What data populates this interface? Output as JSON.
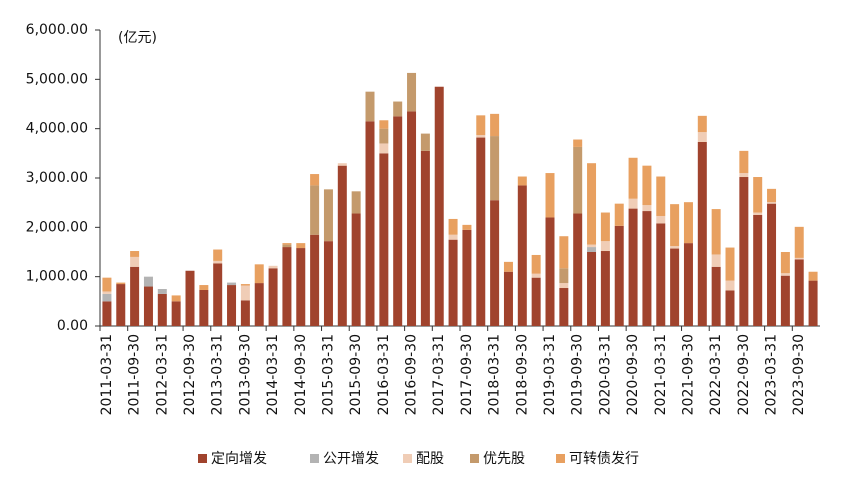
{
  "chart_data": {
    "type": "stacked_bar",
    "y_unit": "(亿元)",
    "categories": [
      "2011-03-31",
      null,
      "2011-09-30",
      null,
      "2012-03-31",
      null,
      "2012-09-30",
      null,
      "2013-03-31",
      null,
      "2013-09-30",
      null,
      "2014-03-31",
      null,
      "2014-09-30",
      null,
      "2015-03-31",
      null,
      "2015-09-30",
      null,
      "2016-03-31",
      null,
      "2016-09-30",
      null,
      "2017-03-31",
      null,
      "2017-09-30",
      null,
      "2018-03-31",
      null,
      "2018-09-30",
      null,
      "2019-03-31",
      null,
      "2019-09-30",
      null,
      "2020-03-31",
      null,
      "2020-09-30",
      null,
      "2021-03-31",
      null,
      "2021-09-30",
      null,
      "2022-03-31",
      null,
      "2022-09-30",
      null,
      "2023-03-31",
      null,
      "2023-09-30",
      null
    ],
    "series": [
      {
        "name": "定向增发",
        "color": "#a0432d",
        "values": [
          500,
          850,
          1200,
          800,
          650,
          500,
          1120,
          730,
          1270,
          830,
          520,
          870,
          1170,
          1600,
          1580,
          1850,
          1720,
          3250,
          2280,
          4150,
          3500,
          4250,
          4350,
          3550,
          4850,
          1750,
          1950,
          3820,
          2550,
          1100,
          2850,
          980,
          2200,
          770,
          2280,
          1500,
          1520,
          2030,
          2380,
          2330,
          2080,
          1570,
          1680,
          3730,
          1200,
          720,
          3020,
          2250,
          2480,
          1020,
          1350,
          920
        ]
      },
      {
        "name": "公开增发",
        "color": "#b3b3b3",
        "values": [
          150,
          0,
          0,
          200,
          100,
          0,
          0,
          0,
          0,
          50,
          0,
          0,
          0,
          0,
          0,
          0,
          0,
          0,
          0,
          0,
          0,
          0,
          0,
          0,
          0,
          0,
          0,
          0,
          0,
          0,
          0,
          0,
          0,
          0,
          0,
          100,
          0,
          0,
          0,
          0,
          0,
          0,
          0,
          0,
          0,
          0,
          0,
          0,
          0,
          0,
          0,
          0
        ]
      },
      {
        "name": "配股",
        "color": "#f0cdb6",
        "values": [
          50,
          0,
          200,
          0,
          0,
          0,
          0,
          0,
          50,
          0,
          300,
          0,
          50,
          0,
          0,
          0,
          0,
          50,
          0,
          0,
          200,
          0,
          0,
          0,
          0,
          100,
          0,
          50,
          0,
          0,
          0,
          80,
          0,
          100,
          0,
          50,
          200,
          0,
          200,
          120,
          150,
          50,
          0,
          200,
          250,
          200,
          80,
          50,
          30,
          50,
          30,
          0
        ]
      },
      {
        "name": "优先股",
        "color": "#c49a6c",
        "values": [
          0,
          0,
          0,
          0,
          0,
          0,
          0,
          0,
          0,
          0,
          0,
          0,
          0,
          50,
          0,
          1000,
          1050,
          0,
          450,
          600,
          300,
          300,
          780,
          350,
          0,
          0,
          0,
          0,
          1300,
          0,
          0,
          0,
          0,
          300,
          1350,
          0,
          0,
          0,
          0,
          0,
          0,
          0,
          0,
          0,
          0,
          0,
          0,
          0,
          0,
          0,
          0,
          0
        ]
      },
      {
        "name": "可转债发行",
        "color": "#e8a060",
        "values": [
          280,
          30,
          120,
          0,
          0,
          120,
          0,
          100,
          230,
          0,
          30,
          380,
          0,
          30,
          100,
          230,
          0,
          0,
          0,
          0,
          170,
          0,
          0,
          0,
          0,
          320,
          100,
          400,
          450,
          200,
          180,
          380,
          900,
          650,
          150,
          1650,
          580,
          450,
          830,
          800,
          800,
          850,
          830,
          330,
          920,
          670,
          450,
          720,
          270,
          430,
          630,
          180
        ]
      }
    ],
    "ylim": [
      0,
      6000
    ],
    "yticks": [
      {
        "value": 0,
        "label": "0.00"
      },
      {
        "value": 1000,
        "label": "1,000.00"
      },
      {
        "value": 2000,
        "label": "2,000.00"
      },
      {
        "value": 3000,
        "label": "3,000.00"
      },
      {
        "value": 4000,
        "label": "4,000.00"
      },
      {
        "value": 5000,
        "label": "5,000.00"
      },
      {
        "value": 6000,
        "label": "6,000.00"
      }
    ],
    "legend": "bottom"
  }
}
